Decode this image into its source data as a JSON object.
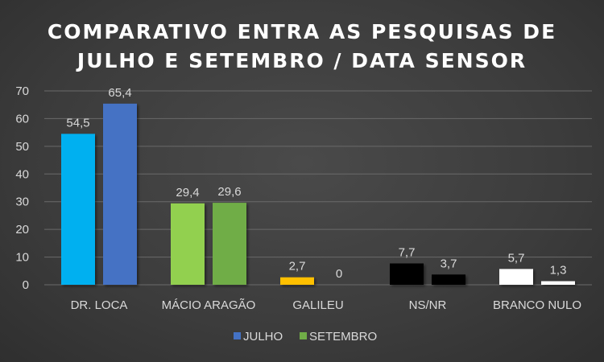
{
  "chart_data": {
    "type": "bar",
    "title_lines": [
      "COMPARATIVO ENTRA AS PESQUISAS DE",
      "JULHO E SETEMBRO / DATA SENSOR"
    ],
    "categories": [
      "DR. LOCA",
      "MÁCIO ARAGÃO",
      "GALILEU",
      "NS/NR",
      "BRANCO NULO"
    ],
    "series": [
      {
        "name": "JULHO",
        "values": [
          54.5,
          29.4,
          2.7,
          7.7,
          5.7
        ],
        "labels": [
          "54,5",
          "29,4",
          "2,7",
          "7,7",
          "5,7"
        ]
      },
      {
        "name": "SETEMBRO",
        "values": [
          65.4,
          29.6,
          0,
          3.7,
          1.3
        ],
        "labels": [
          "65,4",
          "29,6",
          "0",
          "3,7",
          "1,3"
        ]
      }
    ],
    "bar_colors": [
      [
        "#00b0f0",
        "#4472c4"
      ],
      [
        "#92d050",
        "#70ad47"
      ],
      [
        "#ffc000",
        "#ffc000"
      ],
      [
        "#000000",
        "#000000"
      ],
      [
        "#ffffff",
        "#ffffff"
      ]
    ],
    "legend_colors": [
      "#4472c4",
      "#70ad47"
    ],
    "yticks": [
      "0",
      "10",
      "20",
      "30",
      "40",
      "50",
      "60",
      "70"
    ],
    "ylim": [
      0,
      70
    ],
    "grid": true,
    "legend": "bottom"
  }
}
